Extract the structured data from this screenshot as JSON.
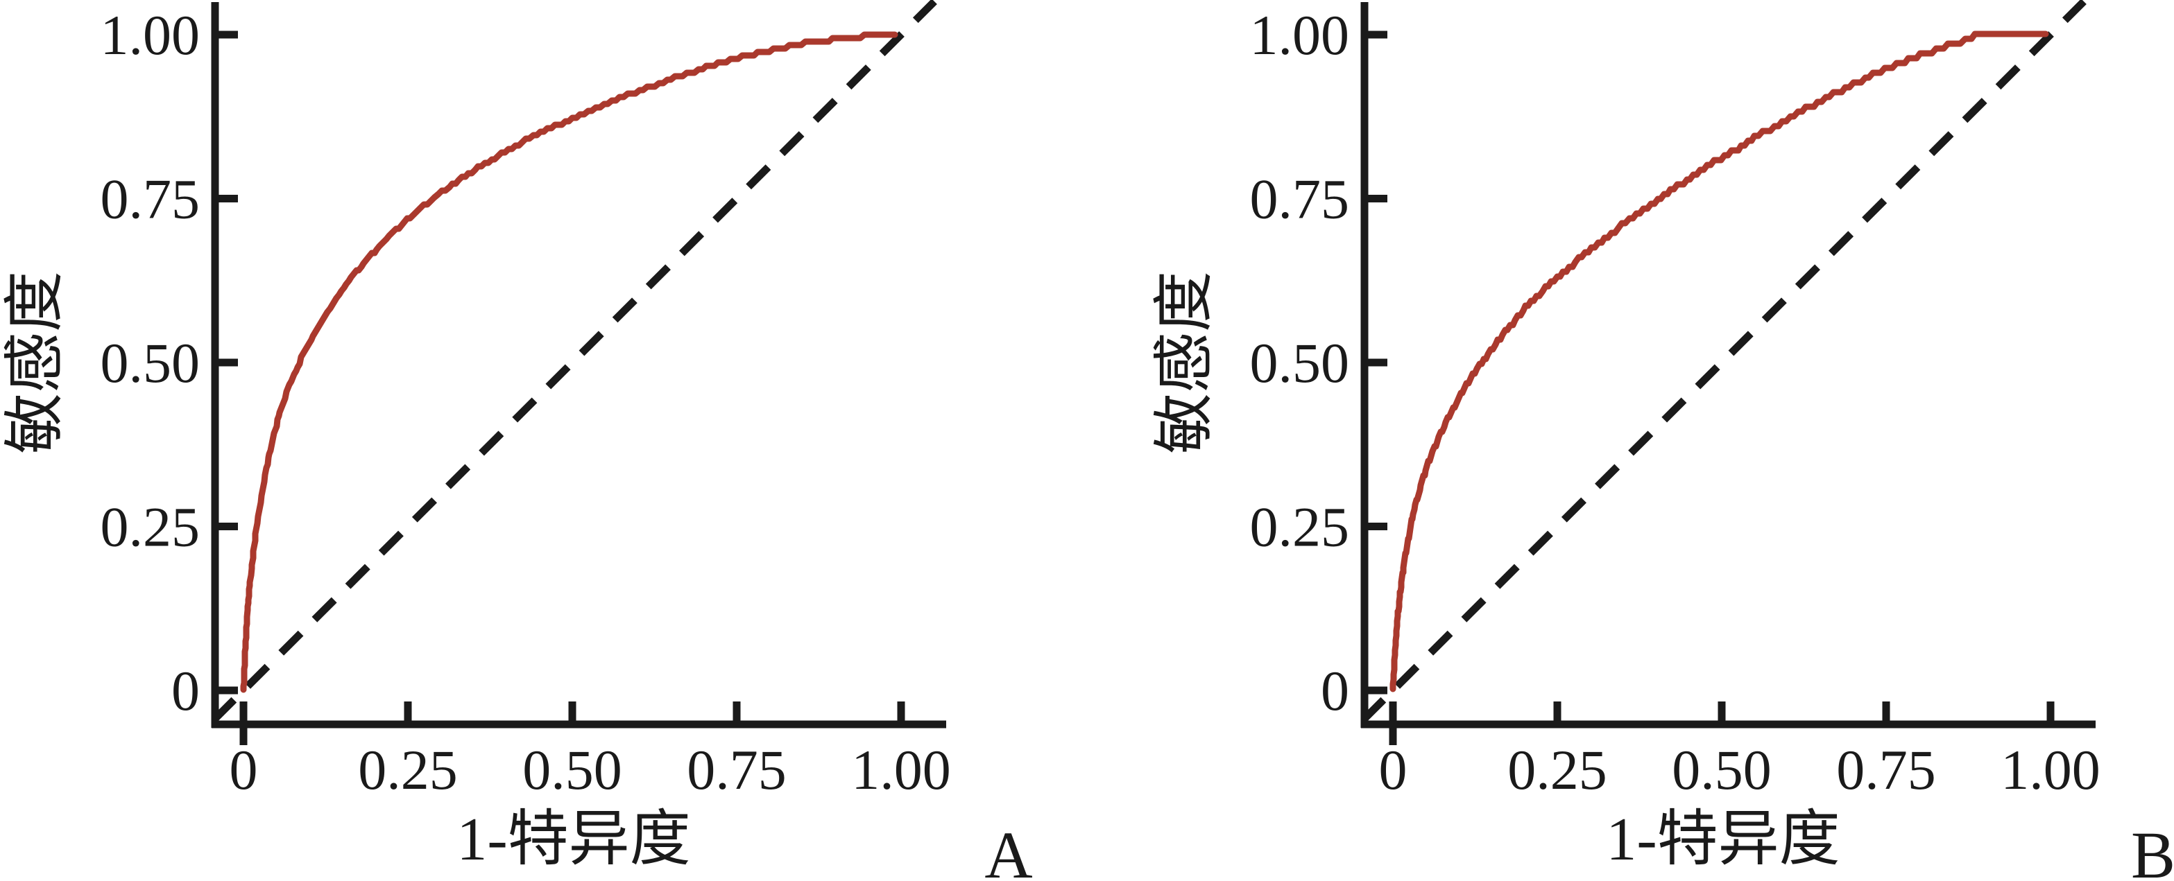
{
  "figure": {
    "background_color": "#ffffff",
    "axis_color": "#1a1a1a",
    "text_color": "#1a1a1a",
    "curve_color": "#aa392d",
    "reference_line_color": "#1a1a1a"
  },
  "chart_data": [
    {
      "type": "line",
      "panel_label": "A",
      "xlabel": "1-特异度",
      "ylabel": "敏感度",
      "xlim": [
        0,
        1
      ],
      "ylim": [
        0,
        1
      ],
      "x_ticks": [
        0,
        0.25,
        0.5,
        0.75,
        1
      ],
      "x_tick_labels": [
        "0",
        "0.25",
        "0.50",
        "0.75",
        "1.00"
      ],
      "y_ticks": [
        0,
        0.25,
        0.5,
        0.75,
        1
      ],
      "y_tick_labels": [
        "0",
        "0.25",
        "0.50",
        "0.75",
        "1.00"
      ],
      "grid": false,
      "legend": false,
      "series": [
        {
          "name": "roc-curve",
          "color": "#aa392d",
          "style": "solid",
          "points": [
            [
              0,
              0
            ],
            [
              0.003,
              0.07
            ],
            [
              0.006,
              0.12
            ],
            [
              0.01,
              0.165
            ],
            [
              0.015,
              0.21
            ],
            [
              0.02,
              0.25
            ],
            [
              0.027,
              0.295
            ],
            [
              0.035,
              0.34
            ],
            [
              0.045,
              0.385
            ],
            [
              0.057,
              0.43
            ],
            [
              0.07,
              0.465
            ],
            [
              0.085,
              0.5
            ],
            [
              0.1,
              0.53
            ],
            [
              0.118,
              0.562
            ],
            [
              0.138,
              0.594
            ],
            [
              0.16,
              0.625
            ],
            [
              0.183,
              0.652
            ],
            [
              0.207,
              0.678
            ],
            [
              0.232,
              0.702
            ],
            [
              0.258,
              0.726
            ],
            [
              0.285,
              0.748
            ],
            [
              0.313,
              0.768
            ],
            [
              0.342,
              0.788
            ],
            [
              0.372,
              0.806
            ],
            [
              0.403,
              0.824
            ],
            [
              0.435,
              0.842
            ],
            [
              0.468,
              0.858
            ],
            [
              0.5,
              0.872
            ],
            [
              0.53,
              0.886
            ],
            [
              0.56,
              0.898
            ],
            [
              0.59,
              0.91
            ],
            [
              0.62,
              0.921
            ],
            [
              0.65,
              0.932
            ],
            [
              0.68,
              0.942
            ],
            [
              0.71,
              0.952
            ],
            [
              0.74,
              0.961
            ],
            [
              0.77,
              0.969
            ],
            [
              0.8,
              0.976
            ],
            [
              0.83,
              0.982
            ],
            [
              0.86,
              0.988
            ],
            [
              0.89,
              0.992
            ],
            [
              0.92,
              0.996
            ],
            [
              0.95,
              0.998
            ],
            [
              0.975,
              0.9995
            ],
            [
              0.99,
              1
            ]
          ]
        },
        {
          "name": "chance-diagonal",
          "color": "#1a1a1a",
          "style": "dashed",
          "points": [
            [
              0,
              0
            ],
            [
              1,
              1
            ]
          ]
        }
      ]
    },
    {
      "type": "line",
      "panel_label": "B",
      "xlabel": "1-特异度",
      "ylabel": "敏感度",
      "xlim": [
        0,
        1
      ],
      "ylim": [
        0,
        1
      ],
      "x_ticks": [
        0,
        0.25,
        0.5,
        0.75,
        1
      ],
      "x_tick_labels": [
        "0",
        "0.25",
        "0.50",
        "0.75",
        "1.00"
      ],
      "y_ticks": [
        0,
        0.25,
        0.5,
        0.75,
        1
      ],
      "y_tick_labels": [
        "0",
        "0.25",
        "0.50",
        "0.75",
        "1.00"
      ],
      "grid": false,
      "legend": false,
      "series": [
        {
          "name": "roc-curve",
          "color": "#aa392d",
          "style": "solid",
          "points": [
            [
              0,
              0
            ],
            [
              0.002,
              0.04
            ],
            [
              0.005,
              0.085
            ],
            [
              0.009,
              0.13
            ],
            [
              0.013,
              0.165
            ],
            [
              0.018,
              0.2
            ],
            [
              0.024,
              0.235
            ],
            [
              0.031,
              0.27
            ],
            [
              0.039,
              0.3
            ],
            [
              0.048,
              0.33
            ],
            [
              0.058,
              0.357
            ],
            [
              0.07,
              0.386
            ],
            [
              0.083,
              0.413
            ],
            [
              0.097,
              0.44
            ],
            [
              0.112,
              0.465
            ],
            [
              0.128,
              0.49
            ],
            [
              0.145,
              0.513
            ],
            [
              0.163,
              0.537
            ],
            [
              0.182,
              0.56
            ],
            [
              0.202,
              0.583
            ],
            [
              0.223,
              0.605
            ],
            [
              0.245,
              0.625
            ],
            [
              0.268,
              0.645
            ],
            [
              0.292,
              0.665
            ],
            [
              0.317,
              0.685
            ],
            [
              0.343,
              0.705
            ],
            [
              0.37,
              0.725
            ],
            [
              0.398,
              0.745
            ],
            [
              0.427,
              0.765
            ],
            [
              0.457,
              0.785
            ],
            [
              0.488,
              0.805
            ],
            [
              0.52,
              0.824
            ],
            [
              0.55,
              0.843
            ],
            [
              0.58,
              0.86
            ],
            [
              0.61,
              0.877
            ],
            [
              0.64,
              0.893
            ],
            [
              0.67,
              0.909
            ],
            [
              0.7,
              0.924
            ],
            [
              0.73,
              0.939
            ],
            [
              0.76,
              0.952
            ],
            [
              0.79,
              0.964
            ],
            [
              0.82,
              0.975
            ],
            [
              0.85,
              0.985
            ],
            [
              0.87,
              0.992
            ],
            [
              0.885,
              0.998
            ],
            [
              0.893,
              1
            ],
            [
              0.993,
              1
            ]
          ]
        },
        {
          "name": "chance-diagonal",
          "color": "#1a1a1a",
          "style": "dashed",
          "points": [
            [
              0,
              0
            ],
            [
              1,
              1
            ]
          ]
        }
      ]
    }
  ]
}
